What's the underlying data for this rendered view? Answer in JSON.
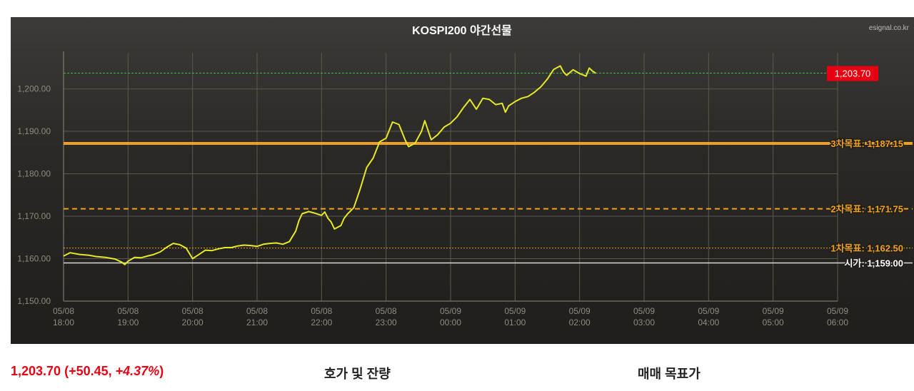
{
  "site": "esignal.co.kr",
  "footer": {
    "price": "1,203.70",
    "change": "(+50.45, ",
    "pct": "+4.37%",
    "close_paren": ")",
    "orderbook_title": "호가 및 잔량",
    "target_title": "매매 목표가"
  },
  "colors": {
    "line": "#e8e82a",
    "target": "#f0a020",
    "open": "#d8d8d8",
    "last": "#3cbf3c",
    "badge": "#e60012"
  },
  "chart_data": {
    "type": "line",
    "title": "KOSPI200 야간선물",
    "xlabel": "",
    "ylabel": "",
    "x_ticks": [
      [
        "05/08",
        "18:00"
      ],
      [
        "05/08",
        "19:00"
      ],
      [
        "05/08",
        "20:00"
      ],
      [
        "05/08",
        "21:00"
      ],
      [
        "05/08",
        "22:00"
      ],
      [
        "05/08",
        "23:00"
      ],
      [
        "05/09",
        "00:00"
      ],
      [
        "05/09",
        "01:00"
      ],
      [
        "05/09",
        "02:00"
      ],
      [
        "05/09",
        "03:00"
      ],
      [
        "05/09",
        "04:00"
      ],
      [
        "05/09",
        "05:00"
      ],
      [
        "05/09",
        "06:00"
      ]
    ],
    "y_ticks": [
      "1,150.00",
      "1,160.00",
      "1,170.00",
      "1,180.00",
      "1,190.00",
      "1,200.00"
    ],
    "xlim_hours": [
      0,
      12
    ],
    "ylim": [
      1150,
      1208.5
    ],
    "grid": true,
    "series": [
      {
        "values_hours_price": [
          [
            0.0,
            1160.6
          ],
          [
            0.1,
            1161.4
          ],
          [
            0.25,
            1161.0
          ],
          [
            0.4,
            1160.8
          ],
          [
            0.5,
            1160.5
          ],
          [
            0.65,
            1160.3
          ],
          [
            0.8,
            1159.9
          ],
          [
            0.9,
            1159.2
          ],
          [
            0.95,
            1158.6
          ],
          [
            1.0,
            1159.4
          ],
          [
            1.1,
            1160.3
          ],
          [
            1.2,
            1160.2
          ],
          [
            1.3,
            1160.6
          ],
          [
            1.4,
            1161.0
          ],
          [
            1.5,
            1161.6
          ],
          [
            1.6,
            1162.7
          ],
          [
            1.7,
            1163.6
          ],
          [
            1.8,
            1163.3
          ],
          [
            1.9,
            1162.5
          ],
          [
            2.0,
            1160.0
          ],
          [
            2.1,
            1161.0
          ],
          [
            2.2,
            1162.0
          ],
          [
            2.3,
            1161.9
          ],
          [
            2.4,
            1162.3
          ],
          [
            2.5,
            1162.6
          ],
          [
            2.6,
            1162.6
          ],
          [
            2.7,
            1163.0
          ],
          [
            2.8,
            1163.2
          ],
          [
            2.9,
            1163.1
          ],
          [
            3.0,
            1162.9
          ],
          [
            3.1,
            1163.4
          ],
          [
            3.2,
            1163.6
          ],
          [
            3.3,
            1163.7
          ],
          [
            3.4,
            1163.4
          ],
          [
            3.5,
            1164.0
          ],
          [
            3.6,
            1166.5
          ],
          [
            3.65,
            1169.0
          ],
          [
            3.7,
            1170.6
          ],
          [
            3.8,
            1171.1
          ],
          [
            3.9,
            1170.7
          ],
          [
            4.0,
            1170.2
          ],
          [
            4.05,
            1171.0
          ],
          [
            4.1,
            1169.5
          ],
          [
            4.15,
            1168.6
          ],
          [
            4.2,
            1167.0
          ],
          [
            4.3,
            1167.8
          ],
          [
            4.35,
            1169.5
          ],
          [
            4.4,
            1170.5
          ],
          [
            4.5,
            1172.0
          ],
          [
            4.6,
            1176.5
          ],
          [
            4.7,
            1181.5
          ],
          [
            4.8,
            1183.7
          ],
          [
            4.9,
            1187.5
          ],
          [
            5.0,
            1188.4
          ],
          [
            5.1,
            1192.2
          ],
          [
            5.2,
            1191.6
          ],
          [
            5.3,
            1187.8
          ],
          [
            5.35,
            1186.4
          ],
          [
            5.45,
            1187.2
          ],
          [
            5.55,
            1190.0
          ],
          [
            5.6,
            1192.5
          ],
          [
            5.7,
            1188.0
          ],
          [
            5.8,
            1189.2
          ],
          [
            5.9,
            1191.0
          ],
          [
            6.0,
            1191.9
          ],
          [
            6.1,
            1193.4
          ],
          [
            6.2,
            1195.6
          ],
          [
            6.3,
            1197.5
          ],
          [
            6.4,
            1195.2
          ],
          [
            6.5,
            1197.8
          ],
          [
            6.6,
            1197.5
          ],
          [
            6.7,
            1196.3
          ],
          [
            6.8,
            1196.6
          ],
          [
            6.85,
            1194.5
          ],
          [
            6.9,
            1196.0
          ],
          [
            7.0,
            1197.0
          ],
          [
            7.1,
            1197.8
          ],
          [
            7.2,
            1198.2
          ],
          [
            7.3,
            1199.2
          ],
          [
            7.4,
            1200.5
          ],
          [
            7.5,
            1202.3
          ],
          [
            7.6,
            1204.6
          ],
          [
            7.7,
            1205.4
          ],
          [
            7.75,
            1204.0
          ],
          [
            7.8,
            1203.2
          ],
          [
            7.9,
            1204.5
          ],
          [
            8.0,
            1203.6
          ],
          [
            8.1,
            1203.0
          ],
          [
            8.15,
            1204.9
          ],
          [
            8.2,
            1204.2
          ],
          [
            8.25,
            1203.7
          ]
        ]
      }
    ],
    "reference_lines": [
      {
        "label": "3차목표: 1,187.15",
        "value": 1187.15,
        "style": "solid-thick"
      },
      {
        "label": "2차목표: 1,171.75",
        "value": 1171.75,
        "style": "dashed"
      },
      {
        "label": "1차목표: 1,162.50",
        "value": 1162.5,
        "style": "dotted"
      },
      {
        "label": "시가: 1,159.00",
        "value": 1159.0,
        "style": "open"
      }
    ],
    "last_price": {
      "label": "1,203.70",
      "value": 1203.7
    }
  }
}
